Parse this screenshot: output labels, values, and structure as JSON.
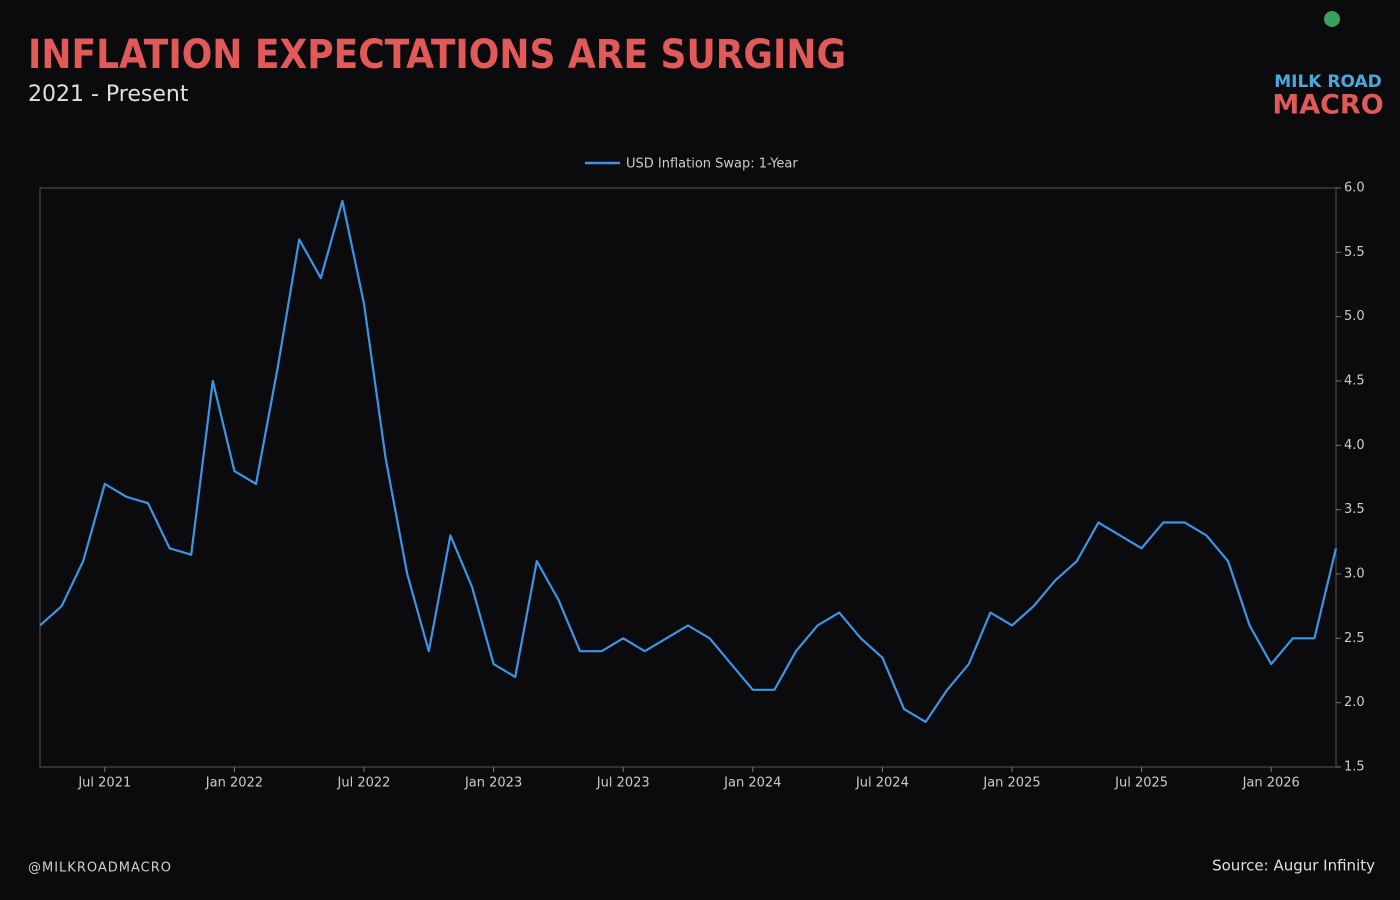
{
  "header": {
    "title": "INFLATION EXPECTATIONS ARE SURGING",
    "subtitle": "2021 - Present",
    "logo_top": "MILK ROAD",
    "logo_bottom": "MACRO"
  },
  "footer": {
    "handle": "@MILKROADMACRO",
    "source": "Source: Augur Infinity"
  },
  "chart_data": {
    "type": "line",
    "x": [
      "2021-04",
      "2021-05",
      "2021-06",
      "2021-07",
      "2021-08",
      "2021-09",
      "2021-10",
      "2021-11",
      "2021-12",
      "2022-01",
      "2022-02",
      "2022-03",
      "2022-04",
      "2022-05",
      "2022-06",
      "2022-07",
      "2022-08",
      "2022-09",
      "2022-10",
      "2022-11",
      "2022-12",
      "2023-01",
      "2023-02",
      "2023-03",
      "2023-04",
      "2023-05",
      "2023-06",
      "2023-07",
      "2023-08",
      "2023-09",
      "2023-10",
      "2023-11",
      "2023-12",
      "2024-01",
      "2024-02",
      "2024-03",
      "2024-04",
      "2024-05",
      "2024-06",
      "2024-07",
      "2024-08",
      "2024-09",
      "2024-10",
      "2024-11",
      "2024-12",
      "2025-01",
      "2025-02",
      "2025-03",
      "2025-04",
      "2025-05",
      "2025-06",
      "2025-07",
      "2025-08",
      "2025-09",
      "2025-10",
      "2025-11",
      "2025-12",
      "2026-01",
      "2026-02",
      "2026-03",
      "2026-04"
    ],
    "series": [
      {
        "name": "USD Inflation Swap: 1-Year",
        "color": "#3b95e6",
        "values": [
          2.6,
          2.75,
          3.1,
          3.7,
          3.6,
          3.55,
          3.2,
          3.15,
          4.5,
          3.8,
          3.7,
          4.6,
          5.6,
          5.3,
          5.9,
          5.1,
          3.9,
          3.0,
          2.4,
          3.3,
          2.9,
          2.3,
          2.2,
          3.1,
          2.8,
          2.4,
          2.4,
          2.5,
          2.4,
          2.5,
          2.6,
          2.5,
          2.3,
          2.1,
          2.1,
          2.4,
          2.6,
          2.7,
          2.5,
          2.35,
          1.95,
          1.85,
          2.1,
          2.3,
          2.7,
          2.6,
          2.75,
          2.95,
          3.1,
          3.4,
          3.3,
          3.2,
          3.4,
          3.4,
          3.3,
          3.1,
          2.6,
          2.3,
          2.5,
          2.5,
          3.2
        ]
      }
    ],
    "xlim": [
      "2021-04",
      "2026-04"
    ],
    "xticks": [
      {
        "value": "2021-07",
        "label": "Jul 2021"
      },
      {
        "value": "2022-01",
        "label": "Jan 2022"
      },
      {
        "value": "2022-07",
        "label": "Jul 2022"
      },
      {
        "value": "2023-01",
        "label": "Jan 2023"
      },
      {
        "value": "2023-07",
        "label": "Jul 2023"
      },
      {
        "value": "2024-01",
        "label": "Jan 2024"
      },
      {
        "value": "2024-07",
        "label": "Jul 2024"
      },
      {
        "value": "2025-01",
        "label": "Jan 2025"
      },
      {
        "value": "2025-07",
        "label": "Jul 2025"
      },
      {
        "value": "2026-01",
        "label": "Jan 2026"
      }
    ],
    "ylim": [
      1.5,
      6.0
    ],
    "yticks": [
      1.5,
      {
        "value": 2,
        "label": "2.0"
      },
      2.5,
      {
        "value": 3,
        "label": "3.0"
      },
      3.5,
      {
        "value": 4,
        "label": "4.0"
      },
      4.5,
      {
        "value": 5,
        "label": "5.0"
      },
      5.5,
      {
        "value": 6,
        "label": "6.0"
      }
    ],
    "y_axis_side": "right",
    "legend": "top"
  }
}
